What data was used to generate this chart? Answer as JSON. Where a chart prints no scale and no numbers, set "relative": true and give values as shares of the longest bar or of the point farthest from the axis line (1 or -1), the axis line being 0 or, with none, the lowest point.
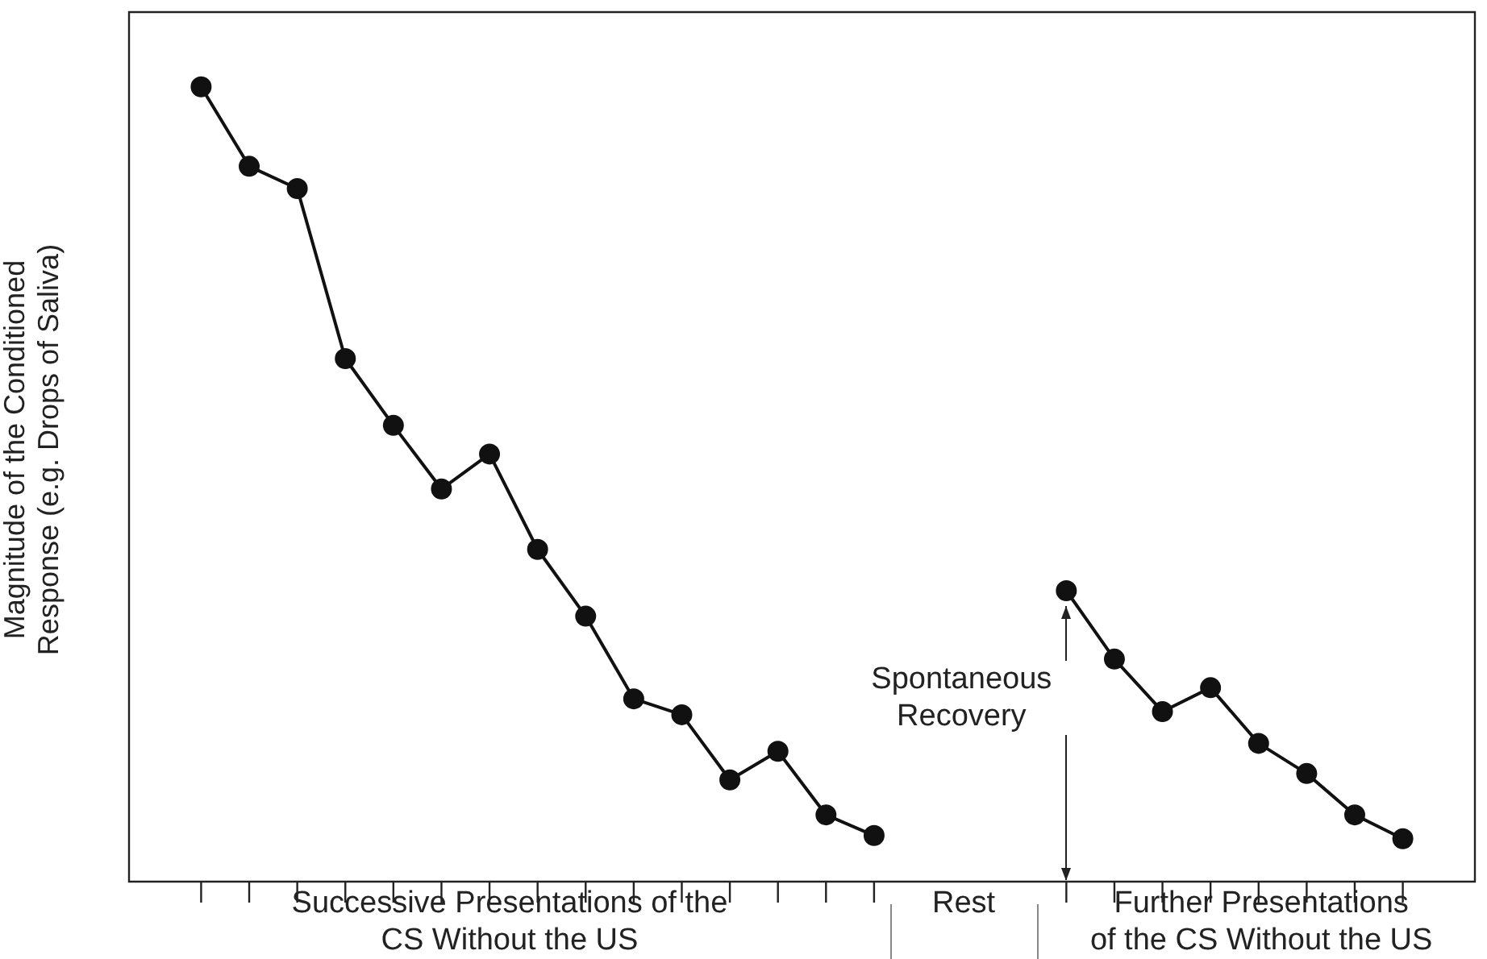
{
  "chart_data": {
    "type": "line",
    "relative": true,
    "ylabel": "Magnitude of the Conditioned\nResponse (e.g. Drops of Saliva)",
    "categories": [
      null,
      null,
      null,
      null,
      null,
      null,
      null,
      null,
      null,
      null,
      null,
      null,
      null,
      null,
      null,
      null,
      null,
      null,
      null,
      null,
      null,
      null,
      null,
      null,
      null,
      null,
      null,
      null
    ],
    "series": [
      {
        "color": "#111111",
        "values": [
          null,
          1.0,
          0.9,
          0.872,
          0.658,
          0.574,
          0.494,
          0.538,
          0.418,
          0.334,
          0.23,
          0.21,
          0.128,
          0.164,
          0.084,
          0.058,
          null,
          null,
          null,
          null,
          null,
          null,
          null,
          null,
          null,
          null,
          null,
          null
        ]
      },
      {
        "color": "#111111",
        "values": [
          null,
          null,
          null,
          null,
          null,
          null,
          null,
          null,
          null,
          null,
          null,
          null,
          null,
          null,
          null,
          null,
          null,
          null,
          null,
          0.366,
          0.28,
          0.214,
          0.244,
          0.174,
          0.136,
          0.084,
          0.054,
          null
        ]
      }
    ],
    "marker": "circle",
    "line_style": "solid",
    "legend": false,
    "annotations": [
      "Spontaneous\nRecovery",
      "Successive Presentations of the\nCS Without the US",
      "Rest",
      "Further Presentations\nof the CS Without the US"
    ]
  }
}
